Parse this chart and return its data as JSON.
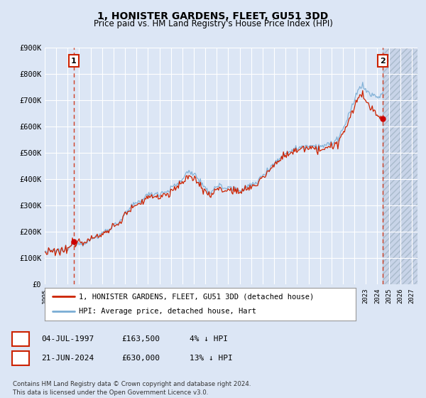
{
  "title": "1, HONISTER GARDENS, FLEET, GU51 3DD",
  "subtitle": "Price paid vs. HM Land Registry's House Price Index (HPI)",
  "ylim": [
    0,
    900000
  ],
  "yticks": [
    0,
    100000,
    200000,
    300000,
    400000,
    500000,
    600000,
    700000,
    800000,
    900000
  ],
  "ytick_labels": [
    "£0",
    "£100K",
    "£200K",
    "£300K",
    "£400K",
    "£500K",
    "£600K",
    "£700K",
    "£800K",
    "£900K"
  ],
  "xlim_start": 1995.0,
  "xlim_end": 2027.5,
  "xticks": [
    1995,
    1996,
    1997,
    1998,
    1999,
    2000,
    2001,
    2002,
    2003,
    2004,
    2005,
    2006,
    2007,
    2008,
    2009,
    2010,
    2011,
    2012,
    2013,
    2014,
    2015,
    2016,
    2017,
    2018,
    2019,
    2020,
    2021,
    2022,
    2023,
    2024,
    2025,
    2026,
    2027
  ],
  "background_color": "#dce6f5",
  "plot_bg_color": "#dce6f5",
  "future_bg_color": "#c8d4e8",
  "grid_color": "#ffffff",
  "hpi_line_color": "#7aadd4",
  "price_line_color": "#cc2200",
  "marker_color": "#cc0000",
  "sale1_x": 1997.54,
  "sale1_y": 163500,
  "sale1_label": "1",
  "sale2_x": 2024.47,
  "sale2_y": 630000,
  "sale2_label": "2",
  "vline_color": "#cc2200",
  "legend_label1": "1, HONISTER GARDENS, FLEET, GU51 3DD (detached house)",
  "legend_label2": "HPI: Average price, detached house, Hart",
  "table_row1": [
    "1",
    "04-JUL-1997",
    "£163,500",
    "4% ↓ HPI"
  ],
  "table_row2": [
    "2",
    "21-JUN-2024",
    "£630,000",
    "13% ↓ HPI"
  ],
  "footer": "Contains HM Land Registry data © Crown copyright and database right 2024.\nThis data is licensed under the Open Government Licence v3.0.",
  "title_fontsize": 10,
  "subtitle_fontsize": 8.5,
  "future_cutoff": 2024.47
}
